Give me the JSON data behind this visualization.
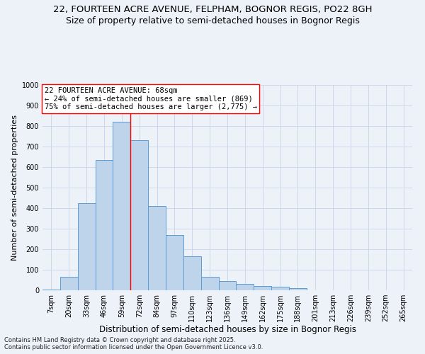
{
  "title_line1": "22, FOURTEEN ACRE AVENUE, FELPHAM, BOGNOR REGIS, PO22 8GH",
  "title_line2": "Size of property relative to semi-detached houses in Bognor Regis",
  "xlabel": "Distribution of semi-detached houses by size in Bognor Regis",
  "ylabel": "Number of semi-detached properties",
  "categories": [
    "7sqm",
    "20sqm",
    "33sqm",
    "46sqm",
    "59sqm",
    "72sqm",
    "84sqm",
    "97sqm",
    "110sqm",
    "123sqm",
    "136sqm",
    "149sqm",
    "162sqm",
    "175sqm",
    "188sqm",
    "201sqm",
    "213sqm",
    "226sqm",
    "239sqm",
    "252sqm",
    "265sqm"
  ],
  "values": [
    5,
    65,
    425,
    635,
    820,
    730,
    410,
    270,
    165,
    65,
    45,
    30,
    20,
    17,
    10,
    0,
    0,
    0,
    0,
    0,
    0
  ],
  "bar_color": "#bdd4eb",
  "bar_edge_color": "#5b9bd5",
  "bar_linewidth": 0.7,
  "grid_color": "#c8d4e8",
  "background_color": "#edf2f9",
  "annotation_box_text": "22 FOURTEEN ACRE AVENUE: 68sqm\n← 24% of semi-detached houses are smaller (869)\n75% of semi-detached houses are larger (2,775) →",
  "annotation_box_color": "white",
  "annotation_box_edge_color": "red",
  "vline_color": "red",
  "vline_linewidth": 1.0,
  "vline_x_index": 4,
  "ylim": [
    0,
    1000
  ],
  "yticks": [
    0,
    100,
    200,
    300,
    400,
    500,
    600,
    700,
    800,
    900,
    1000
  ],
  "footnote": "Contains HM Land Registry data © Crown copyright and database right 2025.\nContains public sector information licensed under the Open Government Licence v3.0.",
  "title_fontsize": 9.5,
  "subtitle_fontsize": 9,
  "xlabel_fontsize": 8.5,
  "ylabel_fontsize": 8,
  "tick_fontsize": 7,
  "annotation_fontsize": 7.5,
  "footnote_fontsize": 6
}
